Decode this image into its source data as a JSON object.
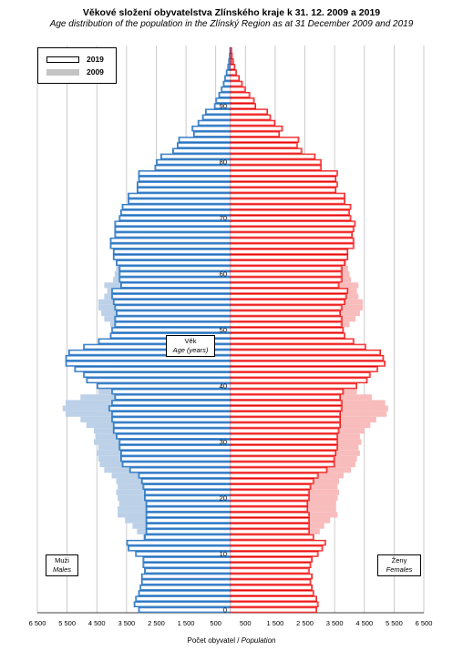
{
  "title": "Věkové složení obyvatelstva Zlínského kraje k 31. 12. 2009 a 2019",
  "subtitle": "Age distribution of the population in the Zlínský Region as at 31 December 2009 and 2019",
  "legend": {
    "y2019": "2019",
    "y2009": "2009"
  },
  "labels": {
    "age_cz": "Věk",
    "age_en": "Age (years)",
    "males_cz": "Muži",
    "males_en": "Males",
    "females_cz": "Ženy",
    "females_en": "Females",
    "xaxis_cz": "Počet obyvatel",
    "xaxis_sep": " / ",
    "xaxis_en": "Population"
  },
  "colors": {
    "male_2019_fill": "#4f8fd6",
    "male_2019_stroke": "#1f6db4",
    "male_2009": "#bcd1e8",
    "female_2019_fill": "#ff5c5c",
    "female_2019_stroke": "#e00000",
    "female_2009": "#f8bcbc",
    "outline_2019": "#ffffff",
    "grid": "#bfbfbf"
  },
  "chart_data": {
    "type": "bar",
    "orientation": "horizontal",
    "subtype": "population-pyramid",
    "x_ticks": [
      "6 500",
      "5 500",
      "4 500",
      "3 500",
      "2 500",
      "1 500",
      "500",
      "500",
      "1 500",
      "2 500",
      "3 500",
      "4 500",
      "5 500",
      "6 500"
    ],
    "x_tick_values": [
      -6500,
      -5500,
      -4500,
      -3500,
      -2500,
      -1500,
      -500,
      500,
      1500,
      2500,
      3500,
      4500,
      5500,
      6500
    ],
    "xlim": [
      -6500,
      6500
    ],
    "ages": [
      0,
      1,
      2,
      3,
      4,
      5,
      6,
      7,
      8,
      9,
      10,
      11,
      12,
      13,
      14,
      15,
      16,
      17,
      18,
      19,
      20,
      21,
      22,
      23,
      24,
      25,
      26,
      27,
      28,
      29,
      30,
      31,
      32,
      33,
      34,
      35,
      36,
      37,
      38,
      39,
      40,
      41,
      42,
      43,
      44,
      45,
      46,
      47,
      48,
      49,
      50,
      51,
      52,
      53,
      54,
      55,
      56,
      57,
      58,
      59,
      60,
      61,
      62,
      63,
      64,
      65,
      66,
      67,
      68,
      69,
      70,
      71,
      72,
      73,
      74,
      75,
      76,
      77,
      78,
      79,
      80,
      81,
      82,
      83,
      84,
      85,
      86,
      87,
      88,
      89,
      90,
      91,
      92,
      93,
      94,
      95,
      96,
      97,
      98,
      99,
      100
    ],
    "age_ticks": [
      0,
      10,
      20,
      30,
      40,
      50,
      60,
      70,
      80,
      90
    ],
    "series": [
      {
        "name": "2019",
        "sex": "male",
        "values": [
          3100,
          3250,
          3200,
          3100,
          3050,
          3000,
          3000,
          2900,
          2950,
          2950,
          3200,
          3450,
          3500,
          2900,
          2850,
          2850,
          2850,
          2850,
          2850,
          2850,
          2900,
          2900,
          2950,
          3000,
          3100,
          3400,
          3650,
          3700,
          3700,
          3750,
          3750,
          3850,
          3950,
          3950,
          4000,
          4000,
          4100,
          4000,
          3900,
          4000,
          4500,
          4850,
          4950,
          5250,
          5550,
          5550,
          5450,
          4950,
          4450,
          4050,
          4000,
          3900,
          3900,
          3850,
          3900,
          3950,
          4000,
          4000,
          3700,
          3750,
          3750,
          3750,
          3850,
          3950,
          3950,
          4050,
          4050,
          3900,
          3900,
          3900,
          3750,
          3700,
          3650,
          3450,
          3450,
          3150,
          3150,
          3100,
          3100,
          2550,
          2500,
          2350,
          1950,
          1800,
          1750,
          1250,
          1300,
          1100,
          950,
          850,
          550,
          500,
          400,
          320,
          250,
          200,
          150,
          100,
          70,
          45,
          30
        ]
      },
      {
        "name": "2009",
        "sex": "male",
        "values": [
          2750,
          2800,
          2750,
          2700,
          2700,
          2650,
          2600,
          2600,
          2650,
          2700,
          2700,
          2800,
          2850,
          2950,
          3150,
          3300,
          3550,
          3800,
          3800,
          3750,
          3800,
          3850,
          3800,
          3850,
          4000,
          4250,
          4400,
          4450,
          4500,
          4450,
          4600,
          4550,
          4600,
          4850,
          5050,
          5550,
          5650,
          5550,
          5050,
          4450,
          4250,
          4150,
          4050,
          4050,
          4100,
          4050,
          3850,
          3750,
          3650,
          3750,
          3850,
          4050,
          4250,
          4350,
          4450,
          4450,
          4250,
          4150,
          4250,
          3950,
          3900,
          3850,
          3700,
          3550,
          3350,
          3300,
          2800,
          2650,
          2500,
          2450,
          2450,
          2400,
          2300,
          2200,
          2100,
          1950,
          1900,
          1750,
          1650,
          1500,
          1350,
          1250,
          1150,
          1000,
          850,
          700,
          600,
          480,
          400,
          340,
          260,
          200,
          150,
          110,
          70,
          45,
          30,
          20,
          12,
          8,
          5
        ]
      },
      {
        "name": "2019",
        "sex": "female",
        "values": [
          2900,
          2950,
          2900,
          2800,
          2750,
          2700,
          2750,
          2650,
          2700,
          2750,
          2950,
          3100,
          3200,
          2800,
          2650,
          2650,
          2650,
          2650,
          2600,
          2600,
          2650,
          2650,
          2700,
          2800,
          2950,
          3250,
          3500,
          3500,
          3550,
          3600,
          3600,
          3600,
          3650,
          3700,
          3700,
          3700,
          3750,
          3750,
          3700,
          3800,
          4250,
          4600,
          4700,
          4950,
          5200,
          5150,
          5050,
          4550,
          4150,
          3850,
          3800,
          3750,
          3750,
          3700,
          3750,
          3850,
          3900,
          3950,
          3650,
          3750,
          3750,
          3750,
          3850,
          3950,
          3950,
          4150,
          4150,
          4100,
          4150,
          4200,
          4050,
          4000,
          4050,
          3850,
          3850,
          3550,
          3600,
          3550,
          3600,
          3050,
          3050,
          2850,
          2400,
          2250,
          2300,
          1650,
          1750,
          1500,
          1350,
          1250,
          850,
          800,
          650,
          500,
          400,
          300,
          200,
          150,
          100,
          60,
          40
        ]
      },
      {
        "name": "2009",
        "sex": "female",
        "values": [
          2550,
          2600,
          2600,
          2550,
          2500,
          2500,
          2450,
          2450,
          2500,
          2550,
          2550,
          2600,
          2700,
          2800,
          3000,
          3150,
          3350,
          3600,
          3550,
          3550,
          3600,
          3650,
          3600,
          3650,
          3800,
          4050,
          4200,
          4250,
          4350,
          4300,
          4400,
          4350,
          4500,
          4700,
          4900,
          5250,
          5300,
          5200,
          4750,
          4250,
          4050,
          3950,
          3850,
          3900,
          3950,
          3900,
          3750,
          3650,
          3600,
          3700,
          3800,
          4000,
          4200,
          4350,
          4450,
          4450,
          4300,
          4250,
          4300,
          4050,
          4000,
          3950,
          3900,
          3800,
          3650,
          3600,
          3150,
          3050,
          2950,
          2950,
          3000,
          3000,
          2950,
          2900,
          2850,
          2750,
          2750,
          2650,
          2550,
          2450,
          2300,
          2200,
          2050,
          1900,
          1700,
          1500,
          1350,
          1150,
          1000,
          850,
          700,
          550,
          420,
          300,
          200,
          140,
          90,
          60,
          35,
          20,
          12
        ]
      }
    ]
  }
}
